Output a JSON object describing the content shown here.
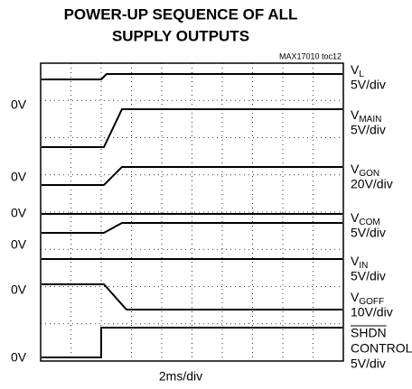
{
  "title": [
    "POWER-UP SEQUENCE OF ALL",
    "SUPPLY OUTPUTS"
  ],
  "reference": "MAX17010 toc12",
  "channels": [
    {
      "name": "V",
      "sub": "L",
      "scale": "5V/div"
    },
    {
      "name": "V",
      "sub": "MAIN",
      "scale": "5V/div"
    },
    {
      "name": "V",
      "sub": "GON",
      "scale": "20V/div"
    },
    {
      "name": "V",
      "sub": "COM",
      "scale": "5V/div"
    },
    {
      "name": "V",
      "sub": "IN",
      "scale": "5V/div"
    },
    {
      "name": "V",
      "sub": "GOFF",
      "scale": "10V/div"
    }
  ],
  "shutdown": {
    "name": "SHDN",
    "line2": "CONTROL",
    "scale": "5V/div"
  },
  "ground_labels": [
    "0V",
    "0V",
    "0V",
    "0V",
    "0V",
    "0V"
  ],
  "time_scale": "2ms/div"
}
